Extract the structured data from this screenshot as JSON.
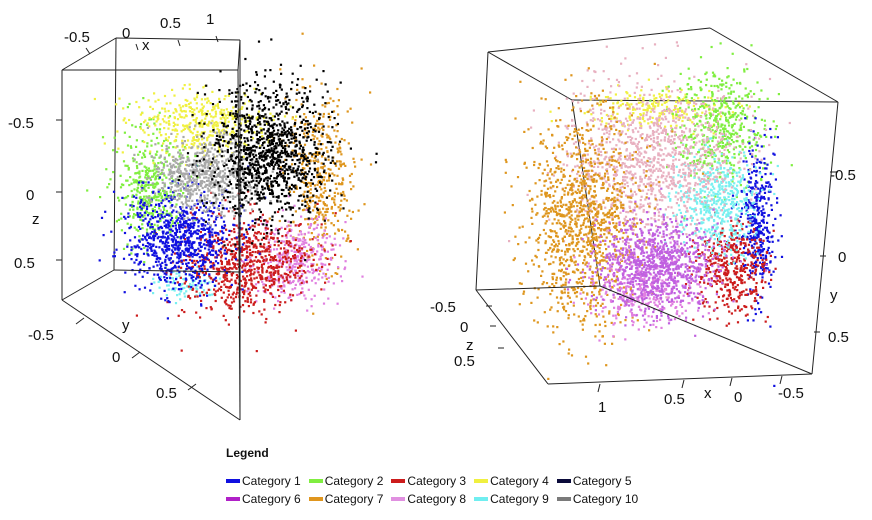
{
  "chart_data": [
    {
      "type": "scatter",
      "subtype": "3d-scatter-cloud",
      "title": "",
      "axes": {
        "x": {
          "label": "x",
          "ticks": [
            "-0.5",
            "0",
            "0.5",
            "1"
          ]
        },
        "y": {
          "label": "y",
          "ticks": [
            "-0.5",
            "0",
            "0.5"
          ]
        },
        "z": {
          "label": "z",
          "ticks": [
            "-0.5",
            "0",
            "0.5"
          ]
        }
      },
      "box": true,
      "visible_categories": [
        "Category 4",
        "Category 5",
        "Category 2",
        "Category 10",
        "Category 7",
        "Category 1",
        "Category 3",
        "Category 8",
        "Category 9"
      ]
    },
    {
      "type": "scatter",
      "subtype": "3d-scatter-cloud",
      "title": "",
      "axes": {
        "x": {
          "label": "x",
          "ticks": [
            "1",
            "0.5",
            "0",
            "-0.5"
          ]
        },
        "y": {
          "label": "y",
          "ticks": [
            "0",
            "0.5"
          ]
        },
        "z": {
          "label": "z",
          "ticks": [
            "-0.5",
            "0",
            "0.5"
          ]
        }
      },
      "axis_ticks_right": [
        "-0.5"
      ],
      "box": true,
      "visible_categories": [
        "Category 7",
        "Category 8",
        "Category 2",
        "Category 9",
        "Category 1",
        "Category 6",
        "Category 3",
        "Category 4"
      ]
    }
  ],
  "legend": {
    "title": "Legend",
    "items": [
      {
        "label": "Category 1",
        "color": "#1010e0"
      },
      {
        "label": "Category 2",
        "color": "#80ee40"
      },
      {
        "label": "Category 3",
        "color": "#cc1c1c"
      },
      {
        "label": "Category 4",
        "color": "#f0f040"
      },
      {
        "label": "Category 5",
        "color": "#0a0a3a"
      },
      {
        "label": "Category 6",
        "color": "#b020c8"
      },
      {
        "label": "Category 7",
        "color": "#e0961e"
      },
      {
        "label": "Category 8",
        "color": "#e090e0"
      },
      {
        "label": "Category 9",
        "color": "#70eef0"
      },
      {
        "label": "Category 10",
        "color": "#7a7a7a"
      }
    ]
  },
  "cluster_colors": {
    "c1": "#1010e0",
    "c2": "#80ee40",
    "c3": "#cc1c1c",
    "c4": "#f0f040",
    "c5": "#000000",
    "c6": "#c060e0",
    "c7": "#de961e",
    "c8": "#e8b0c0",
    "c9": "#78f0f0",
    "c10": "#a8a8a8",
    "c8b": "#e080e0"
  }
}
